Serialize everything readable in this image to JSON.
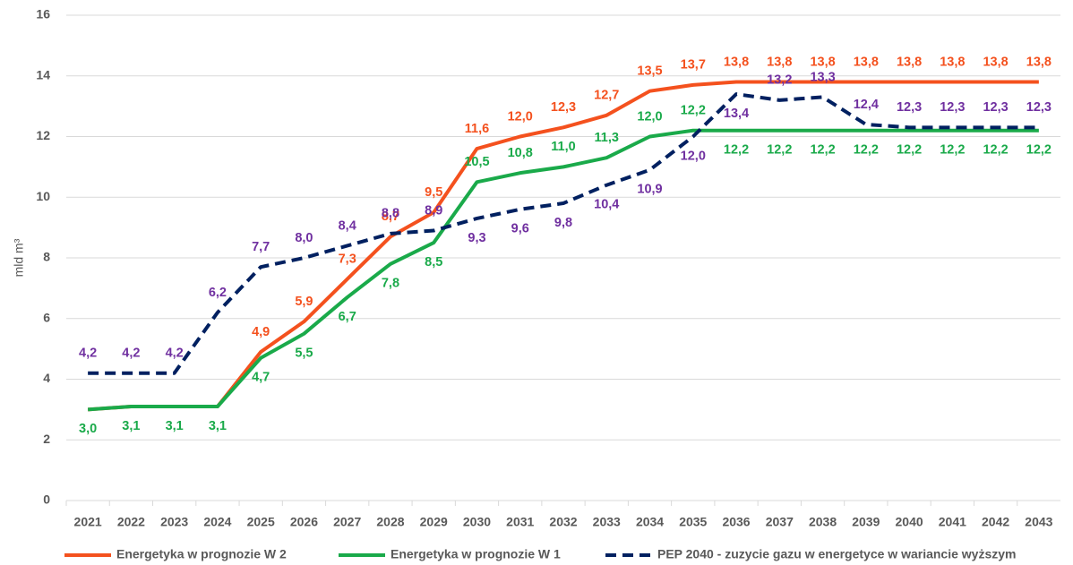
{
  "chart_data": {
    "type": "line",
    "y_label": "mld m³",
    "categories": [
      "2021",
      "2022",
      "2023",
      "2024",
      "2025",
      "2026",
      "2027",
      "2028",
      "2029",
      "2030",
      "2031",
      "2032",
      "2033",
      "2034",
      "2035",
      "2036",
      "2037",
      "2038",
      "2039",
      "2040",
      "2041",
      "2042",
      "2043"
    ],
    "ylim": [
      0,
      16
    ],
    "yticks": [
      0,
      2,
      4,
      6,
      8,
      10,
      12,
      14,
      16
    ],
    "grid": true,
    "legend": "bottom",
    "series": [
      {
        "name": "Energetyka w prognozie W 2",
        "color": "#f4511e",
        "dashed": false,
        "values": [
          3.0,
          3.1,
          3.1,
          3.1,
          4.9,
          5.9,
          7.3,
          8.7,
          9.5,
          11.6,
          12.0,
          12.3,
          12.7,
          13.5,
          13.7,
          13.8,
          13.8,
          13.8,
          13.8,
          13.8,
          13.8,
          13.8,
          13.8
        ],
        "value_labels": [
          null,
          null,
          null,
          null,
          "4,9",
          "5,9",
          "7,3",
          "8,7",
          "9,5",
          "11,6",
          "12,0",
          "12,3",
          "12,7",
          "13,5",
          "13,7",
          "13,8",
          "13,8",
          "13,8",
          "13,8",
          "13,8",
          "13,8",
          "13,8",
          "13,8"
        ]
      },
      {
        "name": "Energetyka w prognozie W 1",
        "color": "#1aaa4a",
        "dashed": false,
        "values": [
          3.0,
          3.1,
          3.1,
          3.1,
          4.7,
          5.5,
          6.7,
          7.8,
          8.5,
          10.5,
          10.8,
          11.0,
          11.3,
          12.0,
          12.2,
          12.2,
          12.2,
          12.2,
          12.2,
          12.2,
          12.2,
          12.2,
          12.2
        ],
        "value_labels": [
          "3,0",
          "3,1",
          "3,1",
          "3,1",
          "4,7",
          "5,5",
          "6,7",
          "7,8",
          "8,5",
          "10,5",
          "10,8",
          "11,0",
          "11,3",
          "12,0",
          "12,2",
          "12,2",
          "12,2",
          "12,2",
          "12,2",
          "12,2",
          "12,2",
          "12,2",
          "12,2"
        ]
      },
      {
        "name": "PEP 2040 - zuzycie gazu w energetyce w wariancie wyższym",
        "color": "#002060",
        "label_color": "#7030a0",
        "dashed": true,
        "values": [
          4.2,
          4.2,
          4.2,
          6.2,
          7.7,
          8.0,
          8.4,
          8.8,
          8.9,
          9.3,
          9.6,
          9.8,
          10.4,
          10.9,
          12.0,
          13.4,
          13.2,
          13.3,
          12.4,
          12.3,
          12.3,
          12.3,
          12.3
        ],
        "value_labels": [
          "4,2",
          "4,2",
          "4,2",
          "6,2",
          "7,7",
          "8,0",
          "8,4",
          "8,8",
          "8,9",
          "9,3",
          "9,6",
          "9,8",
          "10,4",
          "10,9",
          "12,0",
          "13,4",
          "13,2",
          "13,3",
          "12,4",
          "12,3",
          "12,3",
          "12,3",
          "12,3"
        ]
      }
    ]
  }
}
